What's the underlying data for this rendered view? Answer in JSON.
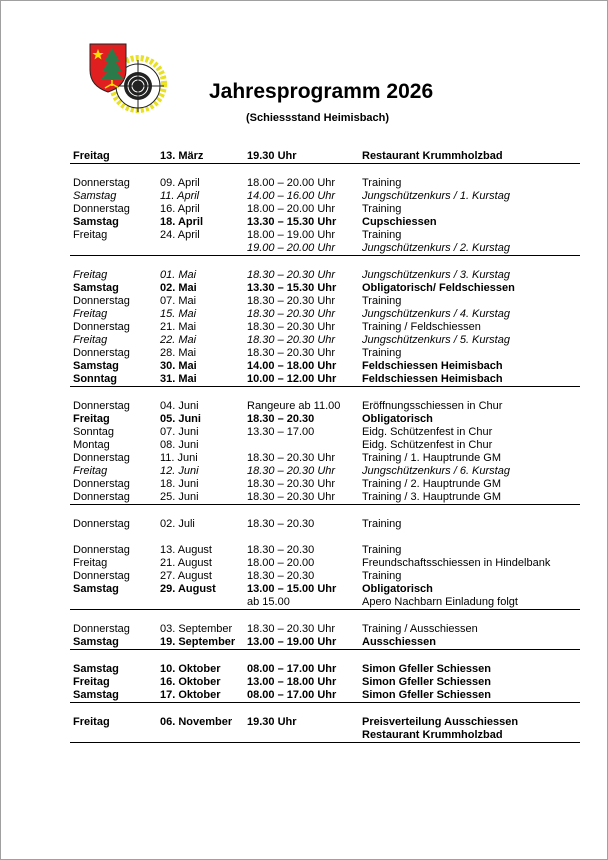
{
  "header": {
    "title": "Jahresprogramm 2026",
    "subtitle": "(Schiessstand Heimisbach)",
    "logo": "club-crest-logo"
  },
  "groups": [
    {
      "rows": [
        {
          "day": "Freitag",
          "date": "13. März",
          "time": "19.30 Uhr",
          "event": "Restaurant Krummholzbad",
          "emphasis": "bold"
        }
      ]
    },
    {
      "rows": [
        {
          "day": "Donnerstag",
          "date": "09. April",
          "time": "18.00 – 20.00 Uhr",
          "event": "Training",
          "emphasis": "normal"
        },
        {
          "day": "Samstag",
          "date": "11. April",
          "time": "14.00 – 16.00 Uhr",
          "event": "Jungschützenkurs / 1. Kurstag",
          "emphasis": "italic"
        },
        {
          "day": "Donnerstag",
          "date": "16. April",
          "time": "18.00 – 20.00 Uhr",
          "event": "Training",
          "emphasis": "normal"
        },
        {
          "day": "Samstag",
          "date": "18. April",
          "time": "13.30 – 15.30 Uhr",
          "event": "Cupschiessen",
          "emphasis": "bold"
        },
        {
          "day": "Freitag",
          "date": "24. April",
          "time": "18.00 – 19.00 Uhr",
          "event": "Training",
          "emphasis": "normal"
        },
        {
          "day": "",
          "date": "",
          "time": "19.00 – 20.00 Uhr",
          "event": "Jungschützenkurs / 2. Kurstag",
          "emphasis": "italic"
        }
      ]
    },
    {
      "rows": [
        {
          "day": "Freitag",
          "date": "01. Mai",
          "time": "18.30 – 20.30 Uhr",
          "event": "Jungschützenkurs / 3. Kurstag",
          "emphasis": "italic"
        },
        {
          "day": "Samstag",
          "date": "02. Mai",
          "time": "13.30 – 15.30 Uhr",
          "event": "Obligatorisch/ Feldschiessen",
          "emphasis": "bold"
        },
        {
          "day": "Donnerstag",
          "date": "07. Mai",
          "time": "18.30 – 20.30 Uhr",
          "event": "Training",
          "emphasis": "normal"
        },
        {
          "day": "Freitag",
          "date": "15. Mai",
          "time": "18.30 – 20.30 Uhr",
          "event": "Jungschützenkurs / 4. Kurstag",
          "emphasis": "italic"
        },
        {
          "day": "Donnerstag",
          "date": "21. Mai",
          "time": "18.30 – 20.30 Uhr",
          "event": "Training / Feldschiessen",
          "emphasis": "normal"
        },
        {
          "day": "Freitag",
          "date": "22. Mai",
          "time": "18.30 – 20.30 Uhr",
          "event": "Jungschützenkurs / 5. Kurstag",
          "emphasis": "italic"
        },
        {
          "day": "Donnerstag",
          "date": "28. Mai",
          "time": "18.30 – 20.30 Uhr",
          "event": "Training",
          "emphasis": "normal"
        },
        {
          "day": "Samstag",
          "date": "30. Mai",
          "time": "14.00 – 18.00 Uhr",
          "event": "Feldschiessen Heimisbach",
          "emphasis": "bold"
        },
        {
          "day": "Sonntag",
          "date": "31. Mai",
          "time": "10.00 – 12.00 Uhr",
          "event": "Feldschiessen Heimisbach",
          "emphasis": "bold"
        }
      ]
    },
    {
      "rows": [
        {
          "day": "Donnerstag",
          "date": "04. Juni",
          "time": "Rangeure ab 11.00",
          "event": "Eröffnungsschiessen in Chur",
          "emphasis": "normal"
        },
        {
          "day": "Freitag",
          "date": "05. Juni",
          "time": "18.30 – 20.30",
          "event": "Obligatorisch",
          "emphasis": "bold"
        },
        {
          "day": "Sonntag",
          "date": "07. Juni",
          "time": "13.30 – 17.00",
          "event": "Eidg. Schützenfest in Chur",
          "emphasis": "normal"
        },
        {
          "day": "Montag",
          "date": "08. Juni",
          "time": "",
          "event": "Eidg. Schützenfest in Chur",
          "emphasis": "normal"
        },
        {
          "day": "Donnerstag",
          "date": "11. Juni",
          "time": "18.30 – 20.30 Uhr",
          "event": "Training / 1. Hauptrunde GM",
          "emphasis": "normal"
        },
        {
          "day": "Freitag",
          "date": "12. Juni",
          "time": "18.30 – 20.30 Uhr",
          "event": "Jungschützenkurs / 6. Kurstag",
          "emphasis": "italic"
        },
        {
          "day": "Donnerstag",
          "date": "18. Juni",
          "time": "18.30 – 20.30 Uhr",
          "event": "Training / 2. Hauptrunde GM",
          "emphasis": "normal"
        },
        {
          "day": "Donnerstag",
          "date": "25. Juni",
          "time": "18.30 – 20.30 Uhr",
          "event": "Training / 3. Hauptrunde GM",
          "emphasis": "normal"
        }
      ]
    },
    {
      "rows": [
        {
          "day": "Donnerstag",
          "date": "02. Juli",
          "time": "18.30 – 20.30",
          "event": "Training",
          "emphasis": "normal"
        },
        {
          "day": "",
          "date": "",
          "time": "",
          "event": "",
          "emphasis": "normal"
        },
        {
          "day": "Donnerstag",
          "date": "13. August",
          "time": "18.30 – 20.30",
          "event": "Training",
          "emphasis": "normal"
        },
        {
          "day": "Freitag",
          "date": "21. August",
          "time": "18.00 – 20.00",
          "event": "Freundschaftsschiessen in Hindelbank",
          "emphasis": "normal"
        },
        {
          "day": "Donnerstag",
          "date": "27. August",
          "time": "18.30 – 20.30",
          "event": "Training",
          "emphasis": "normal"
        },
        {
          "day": "Samstag",
          "date": "29. August",
          "time": "13.00 – 15.00 Uhr",
          "event": "Obligatorisch",
          "emphasis": "bold"
        },
        {
          "day": "",
          "date": "",
          "time": "ab 15.00",
          "event": "Apero Nachbarn Einladung folgt",
          "emphasis": "normal"
        }
      ]
    },
    {
      "rows": [
        {
          "day": "Donnerstag",
          "date": "03. September",
          "time": "18.30 – 20.30 Uhr",
          "event": "Training / Ausschiessen",
          "emphasis": "normal"
        },
        {
          "day": "Samstag",
          "date": "19. September",
          "time": "13.00 – 19.00 Uhr",
          "event": "Ausschiessen",
          "emphasis": "bold"
        }
      ]
    },
    {
      "rows": [
        {
          "day": "Samstag",
          "date": "10. Oktober",
          "time": "08.00 – 17.00 Uhr",
          "event": "Simon Gfeller Schiessen",
          "emphasis": "bold"
        },
        {
          "day": "Freitag",
          "date": "16. Oktober",
          "time": "13.00 – 18.00 Uhr",
          "event": "Simon Gfeller Schiessen",
          "emphasis": "bold"
        },
        {
          "day": "Samstag",
          "date": "17. Oktober",
          "time": "08.00 – 17.00 Uhr",
          "event": "Simon Gfeller Schiessen",
          "emphasis": "bold"
        }
      ]
    },
    {
      "rows": [
        {
          "day": "Freitag",
          "date": "06. November",
          "time": "19.30 Uhr",
          "event": "Preisverteilung Ausschiessen",
          "emphasis": "bold"
        },
        {
          "day": "",
          "date": "",
          "time": "",
          "event": "Restaurant Krummholzbad",
          "emphasis": "bold"
        }
      ]
    }
  ]
}
